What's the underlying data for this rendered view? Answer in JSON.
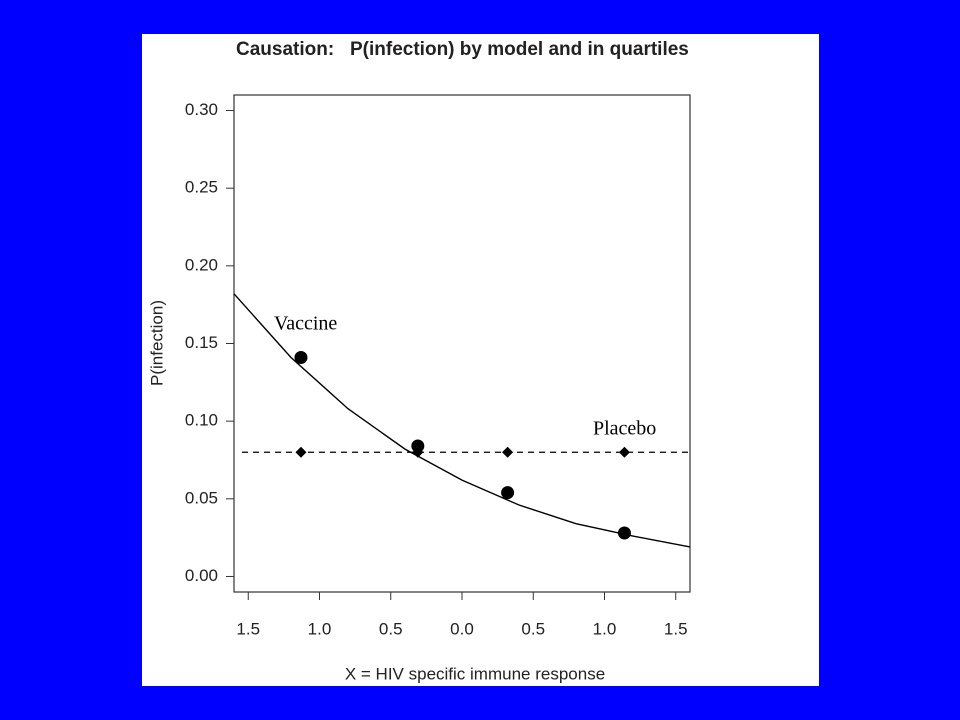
{
  "chart_data": {
    "type": "line",
    "title": "Causation:   P(infection) by model and in quartiles",
    "x_label": "X = HIV specific immune response",
    "y_label": "P(infection)",
    "xlim": [
      -1.6,
      1.6
    ],
    "ylim": [
      -0.01,
      0.31
    ],
    "xticks": [
      {
        "value": -1.5,
        "label": "1.5"
      },
      {
        "value": -1.0,
        "label": "1.0"
      },
      {
        "value": -0.5,
        "label": "0.5"
      },
      {
        "value": 0.0,
        "label": "0.0"
      },
      {
        "value": 0.5,
        "label": "0.5"
      },
      {
        "value": 1.0,
        "label": "1.0"
      },
      {
        "value": 1.5,
        "label": "1.5"
      }
    ],
    "yticks": [
      {
        "value": 0,
        "label": "0.00"
      },
      {
        "value": 0.05,
        "label": "0.05"
      },
      {
        "value": 0.1,
        "label": "0.10"
      },
      {
        "value": 0.15,
        "label": "0.15"
      },
      {
        "value": 0.2,
        "label": "0.20"
      },
      {
        "value": 0.25,
        "label": "0.25"
      },
      {
        "value": 0.3,
        "label": "0.30"
      }
    ],
    "series": [
      {
        "name": "Vaccine",
        "color": "#000000",
        "marker": "circle",
        "x": [
          -1.13,
          -0.31,
          0.32,
          1.14
        ],
        "values": [
          0.141,
          0.084,
          0.054,
          0.028
        ]
      },
      {
        "name": "Placebo",
        "color": "#000000",
        "marker": "diamond",
        "x": [
          -1.13,
          -0.31,
          0.32,
          1.14
        ],
        "values": [
          0.08,
          0.08,
          0.08,
          0.08
        ]
      }
    ],
    "model_curve": {
      "x": [
        -1.6,
        -1.2,
        -0.8,
        -0.4,
        0,
        0.4,
        0.8,
        1.2,
        1.6
      ],
      "values": [
        0.182,
        0.141,
        0.108,
        0.082,
        0.062,
        0.046,
        0.034,
        0.026,
        0.019
      ]
    },
    "placebo_line": 0.08
  }
}
